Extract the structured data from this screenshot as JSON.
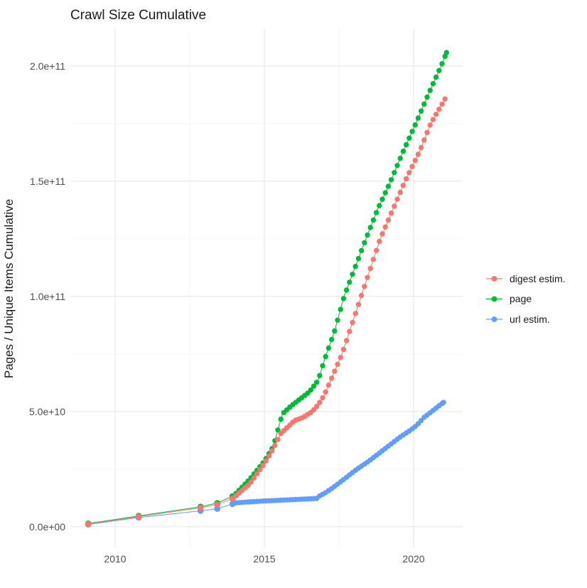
{
  "header": {
    "title": "Crawl Size Cumulative"
  },
  "y_axis": {
    "label": "Pages / Unique Items Cumulative",
    "ticks": [
      "0.0e+00",
      "5.0e+10",
      "1.0e+11",
      "1.5e+11",
      "2.0e+11"
    ],
    "tick_values_e9": [
      0,
      50,
      100,
      150,
      200
    ],
    "minor_gridlines_e9": [
      25,
      75,
      125,
      175
    ]
  },
  "x_axis": {
    "ticks": [
      "2010",
      "2015",
      "2020"
    ],
    "tick_values": [
      2010,
      2015,
      2020
    ],
    "minor_gridlines": [
      2012.5,
      2017.5
    ]
  },
  "legend": {
    "items": [
      {
        "label": "digest estim.",
        "color": "#F8766D"
      },
      {
        "label": "page",
        "color": "#00BA38"
      },
      {
        "label": "url estim.",
        "color": "#619CFF"
      }
    ]
  },
  "colors": {
    "background": "#FFFFFF",
    "grid_major": "#E6E6E6",
    "grid_minor": "#F1F1F1",
    "tick_text": "#4D4D4D",
    "title_text": "#1A1A1A"
  },
  "chart_data": {
    "type": "scatter",
    "title": "Crawl Size Cumulative",
    "xlabel": "",
    "ylabel": "Pages / Unique Items Cumulative",
    "values_unit": "billions (1e9) of pages / unique items, read off plot",
    "xlim": [
      2008.5,
      2021.64
    ],
    "ylim_e9": [
      -9,
      216
    ],
    "grid": true,
    "legend_position": "right",
    "dot_interval_years": 0.1,
    "series": [
      {
        "name": "digest estim.",
        "color": "#F8766D",
        "early_points": [
          [
            2009.1,
            1.2
          ],
          [
            2010.79,
            4.4
          ],
          [
            2012.86,
            8.2
          ],
          [
            2013.42,
            9.6
          ],
          [
            2013.93,
            12.2
          ]
        ],
        "monthly_anchors": [
          [
            2014.05,
            13.5
          ],
          [
            2014.5,
            18.5
          ],
          [
            2015.0,
            27.5
          ],
          [
            2015.3,
            34
          ],
          [
            2015.55,
            40.5
          ],
          [
            2015.8,
            43.5
          ],
          [
            2016.0,
            46
          ],
          [
            2016.3,
            47.5
          ],
          [
            2016.6,
            50
          ],
          [
            2016.8,
            53
          ],
          [
            2017.0,
            57
          ],
          [
            2017.3,
            66
          ],
          [
            2017.6,
            75
          ],
          [
            2018.24,
            100
          ],
          [
            2018.88,
            125
          ],
          [
            2019.71,
            150
          ],
          [
            2020.2,
            163
          ],
          [
            2020.57,
            175
          ],
          [
            2021.05,
            185.7
          ]
        ]
      },
      {
        "name": "page",
        "color": "#00BA38",
        "early_points": [
          [
            2009.1,
            1.4
          ],
          [
            2010.79,
            4.7
          ],
          [
            2012.86,
            8.7
          ],
          [
            2013.42,
            10.3
          ],
          [
            2013.93,
            13.2
          ]
        ],
        "monthly_anchors": [
          [
            2014.05,
            14.5
          ],
          [
            2014.5,
            20.5
          ],
          [
            2015.0,
            28.5
          ],
          [
            2015.3,
            35
          ],
          [
            2015.6,
            49
          ],
          [
            2015.9,
            52.5
          ],
          [
            2016.2,
            55.5
          ],
          [
            2016.5,
            58.5
          ],
          [
            2016.8,
            63.5
          ],
          [
            2017.0,
            72
          ],
          [
            2017.35,
            85
          ],
          [
            2017.67,
            100
          ],
          [
            2018.4,
            125
          ],
          [
            2018.8,
            138
          ],
          [
            2019.23,
            150
          ],
          [
            2019.65,
            163
          ],
          [
            2020.07,
            175
          ],
          [
            2020.5,
            188
          ],
          [
            2020.92,
            200
          ],
          [
            2021.1,
            205.8
          ]
        ]
      },
      {
        "name": "url estim.",
        "color": "#619CFF",
        "early_points": [
          [
            2009.1,
            1.0
          ],
          [
            2010.79,
            4.0
          ],
          [
            2012.86,
            6.9
          ],
          [
            2013.42,
            7.8
          ],
          [
            2013.93,
            9.9
          ]
        ],
        "monthly_anchors": [
          [
            2014.05,
            10.4
          ],
          [
            2014.5,
            10.8
          ],
          [
            2015.0,
            11.2
          ],
          [
            2015.5,
            11.5
          ],
          [
            2016.0,
            11.8
          ],
          [
            2016.5,
            12.1
          ],
          [
            2016.75,
            12.3
          ],
          [
            2016.85,
            13.4
          ],
          [
            2017.0,
            14.4
          ],
          [
            2017.3,
            17
          ],
          [
            2017.6,
            20
          ],
          [
            2017.9,
            23
          ],
          [
            2018.1,
            25
          ],
          [
            2018.5,
            28.5
          ],
          [
            2019.0,
            33.5
          ],
          [
            2019.5,
            38.5
          ],
          [
            2019.9,
            42
          ],
          [
            2020.1,
            44
          ],
          [
            2020.35,
            47.5
          ],
          [
            2020.6,
            50
          ],
          [
            2020.8,
            52
          ],
          [
            2021.0,
            54
          ]
        ]
      }
    ]
  }
}
